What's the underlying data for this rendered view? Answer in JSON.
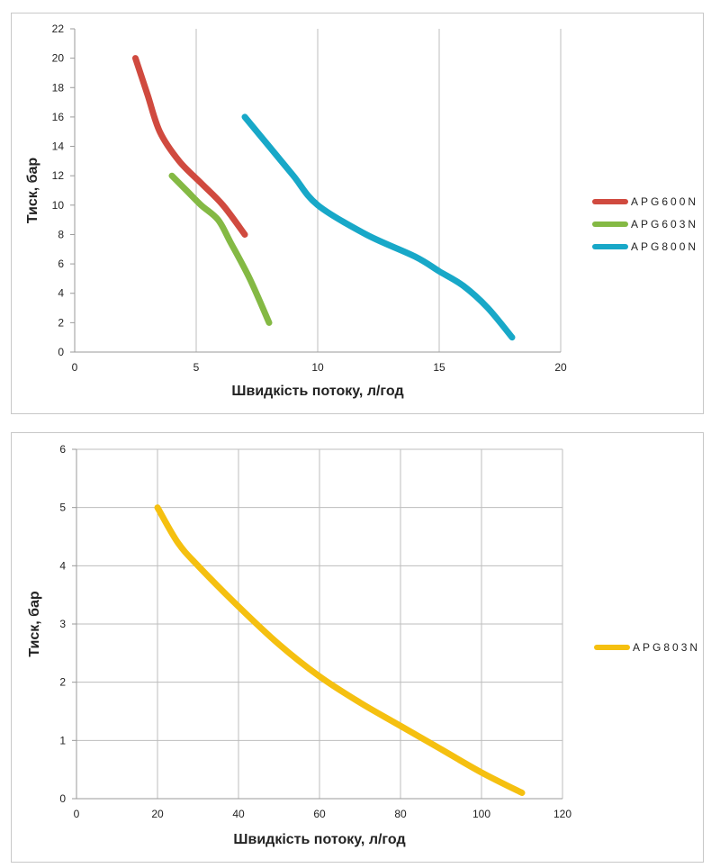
{
  "chart_data": [
    {
      "type": "line",
      "xlabel": "Швидкість потоку, л/год",
      "ylabel": "Тиск, бар",
      "xlim": [
        0,
        20
      ],
      "ylim": [
        0,
        22
      ],
      "x_ticks": [
        0,
        5,
        10,
        15,
        20
      ],
      "y_ticks": [
        0,
        2,
        4,
        6,
        8,
        10,
        12,
        14,
        16,
        18,
        20,
        22
      ],
      "grid": "vertical",
      "legend_position": "right",
      "series": [
        {
          "name": "APG600N",
          "color": "#d04a3f",
          "points": [
            [
              2.5,
              20
            ],
            [
              3.0,
              17.5
            ],
            [
              3.5,
              15
            ],
            [
              4.3,
              13
            ],
            [
              5.2,
              11.5
            ],
            [
              6.1,
              10
            ],
            [
              7.0,
              8
            ]
          ]
        },
        {
          "name": "APG603N",
          "color": "#84b944",
          "points": [
            [
              4.0,
              12
            ],
            [
              4.6,
              11
            ],
            [
              5.2,
              10
            ],
            [
              5.9,
              9
            ],
            [
              6.4,
              7.5
            ],
            [
              7.2,
              5
            ],
            [
              8.0,
              2
            ]
          ]
        },
        {
          "name": "APG800N",
          "color": "#18a8c8",
          "points": [
            [
              7.0,
              16
            ],
            [
              8.0,
              14
            ],
            [
              9.0,
              12
            ],
            [
              10.0,
              10
            ],
            [
              12.0,
              8
            ],
            [
              14.0,
              6.5
            ],
            [
              15.0,
              5.5
            ],
            [
              16.0,
              4.5
            ],
            [
              17.0,
              3
            ],
            [
              18.0,
              1
            ]
          ]
        }
      ]
    },
    {
      "type": "line",
      "xlabel": "Швидкість потоку, л/год",
      "ylabel": "Тиск, бар",
      "xlim": [
        0,
        120
      ],
      "ylim": [
        0,
        6
      ],
      "x_ticks": [
        0,
        20,
        40,
        60,
        80,
        100,
        120
      ],
      "y_ticks": [
        0,
        1,
        2,
        3,
        4,
        5,
        6
      ],
      "grid": "both",
      "legend_position": "right",
      "series": [
        {
          "name": "APG803N",
          "color": "#f5c010",
          "points": [
            [
              20,
              5
            ],
            [
              25,
              4.4
            ],
            [
              30,
              4.0
            ],
            [
              40,
              3.3
            ],
            [
              50,
              2.65
            ],
            [
              60,
              2.1
            ],
            [
              70,
              1.65
            ],
            [
              80,
              1.25
            ],
            [
              90,
              0.85
            ],
            [
              100,
              0.45
            ],
            [
              110,
              0.1
            ]
          ]
        }
      ]
    }
  ]
}
